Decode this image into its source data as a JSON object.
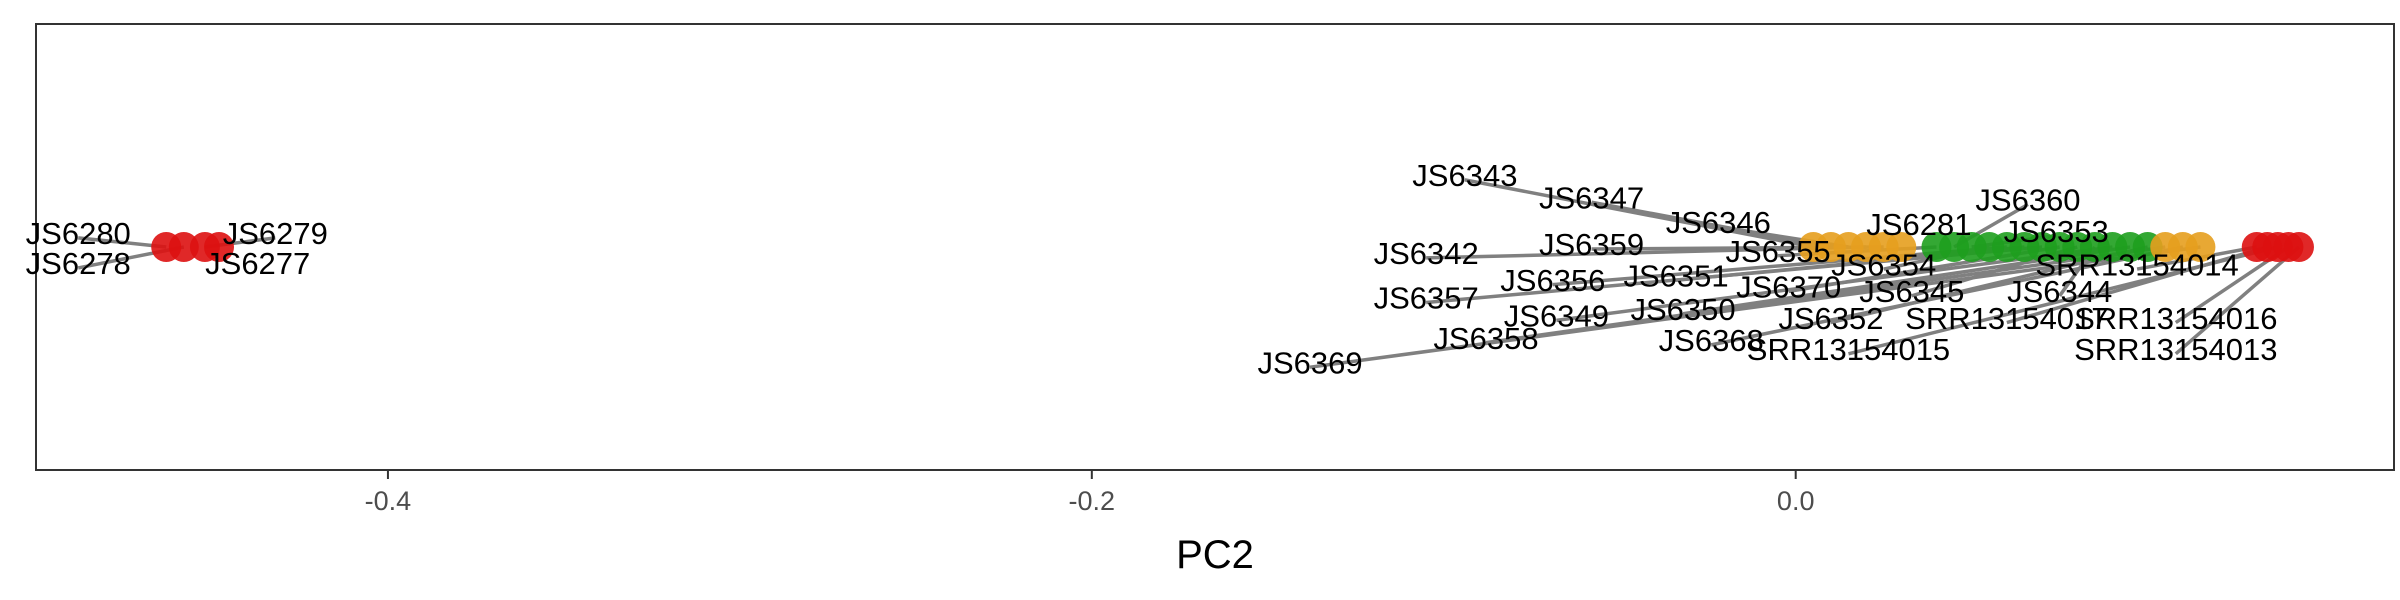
{
  "chart_data": {
    "type": "scatter",
    "title": "",
    "xlabel": "PC2",
    "ylabel": "",
    "xlim": [
      -0.5,
      0.17
    ],
    "ylim": [
      -1.0,
      1.0
    ],
    "x_ticks": [
      -0.4,
      -0.2,
      0.0
    ],
    "x_tick_labels": [
      "-0.4",
      "-0.2",
      "0.0"
    ],
    "grid": false,
    "legend": "none",
    "colors": {
      "red": "#DD1111",
      "orange": "#E69F1E",
      "green": "#1E9E1E",
      "leader": "#808080",
      "panel_border": "#333333"
    },
    "points": [
      {
        "label": "JS6280",
        "x": -0.463,
        "y": 0.0,
        "group": "red",
        "lx": -0.488,
        "ly": 0.05
      },
      {
        "label": "JS6278",
        "x": -0.458,
        "y": 0.0,
        "group": "red",
        "lx": -0.488,
        "ly": -0.085
      },
      {
        "label": "JS6279",
        "x": -0.452,
        "y": 0.0,
        "group": "red",
        "lx": -0.432,
        "ly": 0.05
      },
      {
        "label": "JS6277",
        "x": -0.448,
        "y": 0.0,
        "group": "red",
        "lx": -0.437,
        "ly": -0.085
      },
      {
        "label": "JS6343",
        "x": 0.005,
        "y": 0.0,
        "group": "orange",
        "lx": -0.094,
        "ly": 0.31
      },
      {
        "label": "JS6347",
        "x": 0.01,
        "y": 0.0,
        "group": "orange",
        "lx": -0.058,
        "ly": 0.21
      },
      {
        "label": "JS6346",
        "x": 0.015,
        "y": 0.0,
        "group": "orange",
        "lx": -0.022,
        "ly": 0.1
      },
      {
        "label": "JS6342",
        "x": 0.02,
        "y": 0.0,
        "group": "orange",
        "lx": -0.105,
        "ly": -0.04
      },
      {
        "label": "JS6359",
        "x": 0.025,
        "y": 0.0,
        "group": "orange",
        "lx": -0.058,
        "ly": 0.0
      },
      {
        "label": "JS6281",
        "x": 0.03,
        "y": 0.0,
        "group": "orange",
        "lx": 0.035,
        "ly": 0.09
      },
      {
        "label": "JS6355",
        "x": 0.04,
        "y": 0.0,
        "group": "green",
        "lx": -0.005,
        "ly": -0.03
      },
      {
        "label": "JS6360",
        "x": 0.045,
        "y": 0.0,
        "group": "green",
        "lx": 0.066,
        "ly": 0.2
      },
      {
        "label": "JS6353",
        "x": 0.05,
        "y": 0.0,
        "group": "green",
        "lx": 0.074,
        "ly": 0.06
      },
      {
        "label": "JS6354",
        "x": 0.055,
        "y": 0.0,
        "group": "green",
        "lx": 0.025,
        "ly": -0.09
      },
      {
        "label": "JS6356",
        "x": 0.06,
        "y": 0.0,
        "group": "green",
        "lx": -0.069,
        "ly": -0.16
      },
      {
        "label": "JS6351",
        "x": 0.065,
        "y": 0.0,
        "group": "green",
        "lx": -0.034,
        "ly": -0.14
      },
      {
        "label": "JS6357",
        "x": 0.07,
        "y": 0.0,
        "group": "green",
        "lx": -0.105,
        "ly": -0.24
      },
      {
        "label": "JS6370",
        "x": 0.075,
        "y": 0.0,
        "group": "green",
        "lx": -0.002,
        "ly": -0.19
      },
      {
        "label": "JS6345",
        "x": 0.08,
        "y": 0.0,
        "group": "green",
        "lx": 0.033,
        "ly": -0.21
      },
      {
        "label": "JS6344",
        "x": 0.085,
        "y": 0.0,
        "group": "green",
        "lx": 0.075,
        "ly": -0.21
      },
      {
        "label": "JS6349",
        "x": 0.09,
        "y": 0.0,
        "group": "green",
        "lx": -0.068,
        "ly": -0.32
      },
      {
        "label": "JS6350",
        "x": 0.095,
        "y": 0.0,
        "group": "green",
        "lx": -0.032,
        "ly": -0.29
      },
      {
        "label": "JS6352",
        "x": 0.1,
        "y": 0.0,
        "group": "green",
        "lx": 0.01,
        "ly": -0.33
      },
      {
        "label": "JS6358",
        "x": 0.105,
        "y": 0.0,
        "group": "orange",
        "lx": -0.088,
        "ly": -0.42
      },
      {
        "label": "JS6368",
        "x": 0.11,
        "y": 0.0,
        "group": "orange",
        "lx": -0.024,
        "ly": -0.43
      },
      {
        "label": "JS6369",
        "x": 0.115,
        "y": 0.0,
        "group": "orange",
        "lx": -0.138,
        "ly": -0.53
      },
      {
        "label": "SRR13154014",
        "x": 0.131,
        "y": 0.0,
        "group": "red",
        "lx": 0.097,
        "ly": -0.09
      },
      {
        "label": "SRR13154017",
        "x": 0.134,
        "y": 0.0,
        "group": "red",
        "lx": 0.06,
        "ly": -0.33
      },
      {
        "label": "SRR13154015",
        "x": 0.137,
        "y": 0.0,
        "group": "red",
        "lx": 0.015,
        "ly": -0.47
      },
      {
        "label": "SRR13154016",
        "x": 0.14,
        "y": 0.0,
        "group": "red",
        "lx": 0.108,
        "ly": -0.33
      },
      {
        "label": "SRR13154013",
        "x": 0.143,
        "y": 0.0,
        "group": "red",
        "lx": 0.108,
        "ly": -0.47
      }
    ]
  }
}
